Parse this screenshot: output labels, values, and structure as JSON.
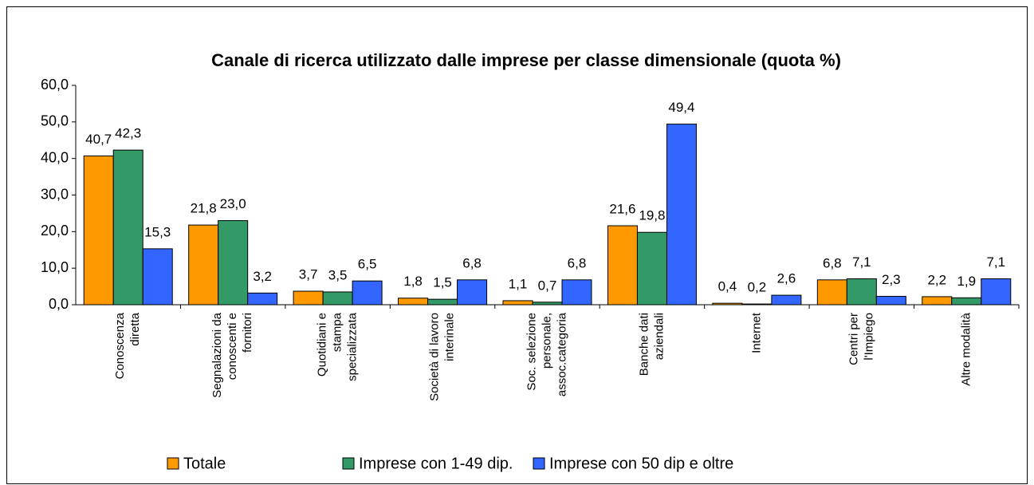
{
  "chart_data": {
    "type": "bar",
    "title": "Canale di ricerca utilizzato dalle imprese per classe dimensionale (quota %)",
    "categories": [
      "Conoscenza\ndiretta",
      "Segnalazioni da\nconoscenti e\nfornitori",
      "Quotidiani e\nstampa\nspecializzata",
      "Società di lavoro\ninterinale",
      "Soc. selezione\npersonale,\nassoc.categoria",
      "Banche dati\naziendali",
      "Internet",
      "Centri per\nl'Impiego",
      "Altre modalità"
    ],
    "series": [
      {
        "name": "Totale",
        "color": "#ff9900",
        "values": [
          40.7,
          21.8,
          3.7,
          1.8,
          1.1,
          21.6,
          0.4,
          6.8,
          2.2
        ],
        "value_labels": [
          "40,7",
          "21,8",
          "3,7",
          "1,8",
          "1,1",
          "21,6",
          "0,4",
          "6,8",
          "2,2"
        ]
      },
      {
        "name": "Imprese con 1-49 dip.",
        "color": "#339966",
        "values": [
          42.3,
          23.0,
          3.5,
          1.5,
          0.7,
          19.8,
          0.2,
          7.1,
          1.9
        ],
        "value_labels": [
          "42,3",
          "23,0",
          "3,5",
          "1,5",
          "0,7",
          "19,8",
          "0,2",
          "7,1",
          "1,9"
        ]
      },
      {
        "name": "Imprese con 50 dip e oltre",
        "color": "#3366ff",
        "values": [
          15.3,
          3.2,
          6.5,
          6.8,
          6.8,
          49.4,
          2.6,
          2.3,
          7.1
        ],
        "value_labels": [
          "15,3",
          "3,2",
          "6,5",
          "6,8",
          "6,8",
          "49,4",
          "2,6",
          "2,3",
          "7,1"
        ]
      }
    ],
    "ylim": [
      0,
      60
    ],
    "yticks": [
      {
        "value": 0,
        "label": "0,0"
      },
      {
        "value": 10,
        "label": "10,0"
      },
      {
        "value": 20,
        "label": "20,0"
      },
      {
        "value": 30,
        "label": "30,0"
      },
      {
        "value": 40,
        "label": "40,0"
      },
      {
        "value": 50,
        "label": "50,0"
      },
      {
        "value": 60,
        "label": "60,0"
      }
    ],
    "legend": "bottom"
  }
}
